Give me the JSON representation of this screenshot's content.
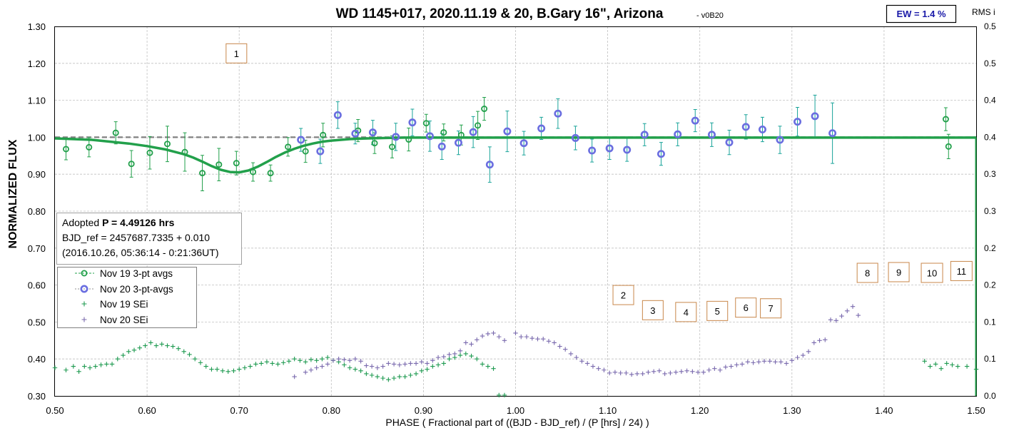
{
  "chart_data": {
    "type": "scatter",
    "title": "WD 1145+017, 2020.11.19 & 20, B.Gary 16\", Arizona",
    "subtitle": "v0B20",
    "xlabel": "PHASE ( Fractional part of ((BJD - BJD_ref) / (P [hrs] / 24) )",
    "ylabel": "NORMALIZED FLUX",
    "right_axis_label": "RMS i",
    "xlim": [
      0.5,
      1.5
    ],
    "ylim": [
      0.3,
      1.3
    ],
    "y2lim": [
      0.0,
      0.5
    ],
    "x_ticks": [
      "0.50",
      "0.60",
      "0.70",
      "0.80",
      "0.90",
      "1.00",
      "1.10",
      "1.20",
      "1.30",
      "1.40",
      "1.50"
    ],
    "y_ticks": [
      "0.30",
      "0.40",
      "0.50",
      "0.60",
      "0.70",
      "0.80",
      "0.90",
      "1.00",
      "1.10",
      "1.20",
      "1.30"
    ],
    "y2_ticks": [
      "0.0",
      "0.1",
      "0.1",
      "0.2",
      "0.2",
      "0.3",
      "0.3",
      "0.4",
      "0.4",
      "0.5",
      "0.5"
    ],
    "grid": true,
    "legend_position": "middle-left",
    "ew_label": "EW = 1.4 %",
    "info_box": {
      "line1_prefix": "Adopted ",
      "line1_bold": "P = 4.49126 hrs",
      "line2": "BJD_ref = 2457687.7335 + 0.010",
      "line3": "(2016.10.26, 05:36:14 - 0:21:36UT)"
    },
    "annotations": [
      {
        "label": "1",
        "x": 0.697,
        "y": 1.227
      },
      {
        "label": "2",
        "x": 1.117,
        "y": 0.573
      },
      {
        "label": "3",
        "x": 1.149,
        "y": 0.532
      },
      {
        "label": "4",
        "x": 1.185,
        "y": 0.527
      },
      {
        "label": "5",
        "x": 1.219,
        "y": 0.53
      },
      {
        "label": "6",
        "x": 1.25,
        "y": 0.539
      },
      {
        "label": "7",
        "x": 1.277,
        "y": 0.537
      },
      {
        "label": "8",
        "x": 1.382,
        "y": 0.633
      },
      {
        "label": "9",
        "x": 1.416,
        "y": 0.635
      },
      {
        "label": "10",
        "x": 1.452,
        "y": 0.633
      },
      {
        "label": "11",
        "x": 1.484,
        "y": 0.638
      }
    ],
    "series": [
      {
        "name": "Nov 19 3-pt avgs",
        "color": "#22a04b",
        "marker": "circle",
        "x": [
          0.512,
          0.537,
          0.566,
          0.583,
          0.603,
          0.622,
          0.641,
          0.66,
          0.678,
          0.697,
          0.715,
          0.734,
          0.753,
          0.772,
          0.791,
          0.829,
          0.847,
          0.866,
          0.884,
          0.903,
          0.922,
          0.941,
          0.959,
          0.966,
          1.467,
          1.47
        ],
        "y": [
          0.968,
          0.973,
          1.012,
          0.928,
          0.958,
          0.982,
          0.96,
          0.903,
          0.926,
          0.93,
          0.906,
          0.903,
          0.974,
          0.962,
          1.006,
          1.018,
          0.984,
          0.974,
          0.994,
          1.038,
          1.013,
          1.006,
          1.032,
          1.077,
          1.049,
          0.975
        ],
        "err": [
          0.029,
          0.026,
          0.03,
          0.036,
          0.044,
          0.048,
          0.052,
          0.048,
          0.044,
          0.032,
          0.025,
          0.022,
          0.025,
          0.03,
          0.032,
          0.03,
          0.028,
          0.03,
          0.031,
          0.024,
          0.023,
          0.027,
          0.038,
          0.031,
          0.031,
          0.033
        ]
      },
      {
        "name": "Nov 20 3-pt-avgs",
        "color": "#6a6ee0",
        "marker": "circle-bold",
        "x": [
          0.767,
          0.788,
          0.807,
          0.826,
          0.845,
          0.87,
          0.888,
          0.907,
          0.92,
          0.938,
          0.954,
          0.972,
          0.991,
          1.009,
          1.028,
          1.046,
          1.065,
          1.083,
          1.102,
          1.121,
          1.14,
          1.158,
          1.176,
          1.195,
          1.213,
          1.232,
          1.25,
          1.268,
          1.287,
          1.306,
          1.325,
          1.344
        ],
        "y": [
          0.993,
          0.962,
          1.06,
          1.01,
          1.013,
          1.001,
          1.04,
          1.003,
          0.975,
          0.985,
          1.014,
          0.926,
          1.016,
          0.984,
          1.024,
          1.064,
          0.998,
          0.964,
          0.97,
          0.966,
          1.007,
          0.955,
          1.008,
          1.045,
          1.007,
          0.986,
          1.028,
          1.021,
          0.993,
          1.042,
          1.057,
          1.011
        ],
        "err": [
          0.031,
          0.033,
          0.036,
          0.028,
          0.033,
          0.037,
          0.036,
          0.041,
          0.035,
          0.032,
          0.042,
          0.048,
          0.055,
          0.032,
          0.03,
          0.04,
          0.032,
          0.031,
          0.03,
          0.031,
          0.03,
          0.031,
          0.031,
          0.03,
          0.032,
          0.033,
          0.033,
          0.033,
          0.037,
          0.039,
          0.057,
          0.082
        ]
      },
      {
        "name": "Nov 19 SEi",
        "color": "#1e9a50",
        "marker": "plus",
        "axis": "right",
        "x": [
          0.5,
          0.512,
          0.52,
          0.526,
          0.532,
          0.538,
          0.544,
          0.55,
          0.556,
          0.562,
          0.568,
          0.574,
          0.58,
          0.586,
          0.592,
          0.598,
          0.604,
          0.61,
          0.616,
          0.622,
          0.628,
          0.634,
          0.64,
          0.646,
          0.652,
          0.658,
          0.664,
          0.67,
          0.676,
          0.682,
          0.688,
          0.694,
          0.7,
          0.706,
          0.712,
          0.718,
          0.724,
          0.73,
          0.736,
          0.742,
          0.748,
          0.754,
          0.76,
          0.766,
          0.772,
          0.778,
          0.784,
          0.79,
          0.796,
          0.802,
          0.808,
          0.814,
          0.82,
          0.826,
          0.832,
          0.838,
          0.844,
          0.85,
          0.856,
          0.862,
          0.868,
          0.874,
          0.88,
          0.886,
          0.892,
          0.898,
          0.904,
          0.91,
          0.916,
          0.922,
          0.928,
          0.934,
          0.94,
          0.946,
          0.952,
          0.958,
          0.964,
          0.97,
          0.976,
          0.982,
          0.988,
          1.444,
          1.45,
          1.456,
          1.462,
          1.468,
          1.474,
          1.48,
          1.49,
          1.5
        ],
        "y": [
          0.038,
          0.035,
          0.04,
          0.033,
          0.04,
          0.038,
          0.04,
          0.042,
          0.043,
          0.043,
          0.05,
          0.055,
          0.06,
          0.062,
          0.065,
          0.068,
          0.072,
          0.068,
          0.07,
          0.068,
          0.067,
          0.064,
          0.06,
          0.056,
          0.05,
          0.045,
          0.04,
          0.036,
          0.036,
          0.034,
          0.033,
          0.034,
          0.036,
          0.038,
          0.04,
          0.043,
          0.044,
          0.046,
          0.044,
          0.043,
          0.045,
          0.047,
          0.05,
          0.048,
          0.046,
          0.049,
          0.048,
          0.05,
          0.052,
          0.048,
          0.046,
          0.042,
          0.038,
          0.036,
          0.034,
          0.03,
          0.028,
          0.026,
          0.024,
          0.022,
          0.024,
          0.026,
          0.026,
          0.028,
          0.03,
          0.034,
          0.036,
          0.04,
          0.042,
          0.044,
          0.05,
          0.052,
          0.055,
          0.057,
          0.054,
          0.05,
          0.043,
          0.04,
          0.037,
          0.001,
          0.001,
          0.047,
          0.04,
          0.043,
          0.037,
          0.044,
          0.042,
          0.04,
          0.04,
          0.036
        ]
      },
      {
        "name": "Nov 20 SEi",
        "color": "#7a6aae",
        "marker": "plus",
        "axis": "right",
        "x": [
          0.76,
          0.772,
          0.778,
          0.784,
          0.79,
          0.796,
          0.802,
          0.808,
          0.814,
          0.82,
          0.826,
          0.832,
          0.838,
          0.844,
          0.85,
          0.856,
          0.862,
          0.868,
          0.874,
          0.88,
          0.886,
          0.892,
          0.898,
          0.904,
          0.91,
          0.916,
          0.922,
          0.928,
          0.934,
          0.94,
          0.946,
          0.952,
          0.958,
          0.964,
          0.97,
          0.976,
          0.982,
          0.988,
          1.0,
          1.006,
          1.012,
          1.018,
          1.024,
          1.03,
          1.036,
          1.042,
          1.048,
          1.054,
          1.06,
          1.066,
          1.072,
          1.078,
          1.084,
          1.09,
          1.096,
          1.102,
          1.108,
          1.114,
          1.12,
          1.126,
          1.132,
          1.138,
          1.144,
          1.15,
          1.156,
          1.162,
          1.168,
          1.174,
          1.18,
          1.186,
          1.192,
          1.198,
          1.204,
          1.21,
          1.216,
          1.222,
          1.228,
          1.234,
          1.24,
          1.246,
          1.252,
          1.258,
          1.264,
          1.27,
          1.276,
          1.282,
          1.288,
          1.294,
          1.3,
          1.306,
          1.312,
          1.318,
          1.324,
          1.33,
          1.336,
          1.342,
          1.348,
          1.354,
          1.36,
          1.366,
          1.372
        ],
        "y": [
          0.026,
          0.032,
          0.035,
          0.038,
          0.04,
          0.043,
          0.048,
          0.05,
          0.049,
          0.048,
          0.05,
          0.047,
          0.041,
          0.04,
          0.038,
          0.04,
          0.044,
          0.043,
          0.042,
          0.043,
          0.044,
          0.044,
          0.046,
          0.044,
          0.048,
          0.052,
          0.053,
          0.056,
          0.057,
          0.061,
          0.072,
          0.07,
          0.076,
          0.081,
          0.084,
          0.085,
          0.08,
          0.075,
          0.085,
          0.08,
          0.08,
          0.078,
          0.077,
          0.077,
          0.074,
          0.072,
          0.067,
          0.063,
          0.057,
          0.052,
          0.047,
          0.044,
          0.04,
          0.037,
          0.035,
          0.031,
          0.032,
          0.031,
          0.031,
          0.029,
          0.03,
          0.03,
          0.032,
          0.033,
          0.034,
          0.03,
          0.031,
          0.032,
          0.033,
          0.034,
          0.033,
          0.032,
          0.032,
          0.035,
          0.037,
          0.035,
          0.039,
          0.04,
          0.042,
          0.043,
          0.046,
          0.045,
          0.046,
          0.047,
          0.047,
          0.046,
          0.046,
          0.044,
          0.048,
          0.052,
          0.055,
          0.06,
          0.072,
          0.075,
          0.076,
          0.103,
          0.102,
          0.108,
          0.115,
          0.121,
          0.109
        ]
      }
    ],
    "model_curve": {
      "color": "#22a04b",
      "x": [
        0.5,
        0.52,
        0.54,
        0.56,
        0.58,
        0.6,
        0.62,
        0.64,
        0.65,
        0.66,
        0.67,
        0.68,
        0.69,
        0.7,
        0.71,
        0.72,
        0.73,
        0.74,
        0.75,
        0.76,
        0.77,
        0.78,
        0.79,
        0.8,
        0.82,
        0.84,
        0.86,
        0.88,
        1.5
      ],
      "y": [
        0.997,
        0.995,
        0.993,
        0.988,
        0.983,
        0.976,
        0.967,
        0.954,
        0.945,
        0.934,
        0.922,
        0.912,
        0.906,
        0.905,
        0.91,
        0.92,
        0.933,
        0.947,
        0.959,
        0.969,
        0.977,
        0.983,
        0.988,
        0.991,
        0.995,
        0.997,
        0.998,
        0.999,
        0.999
      ]
    },
    "reference_line": {
      "y": 1.0,
      "color": "#808080",
      "style": "dashed"
    }
  }
}
